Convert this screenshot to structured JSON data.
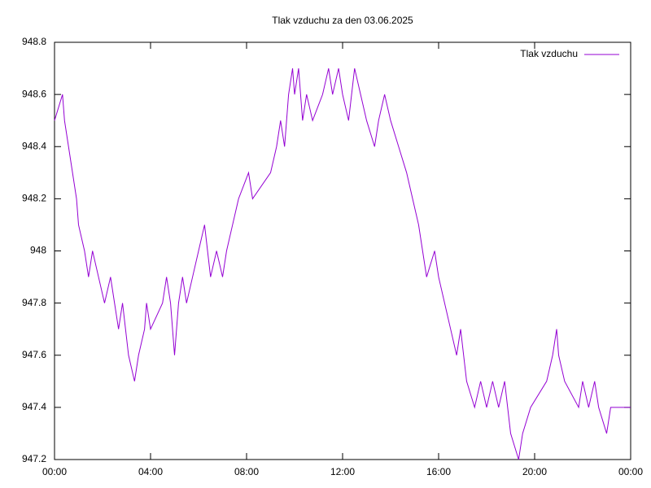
{
  "chart_data": {
    "type": "line",
    "title": "Tlak vzduchu za den 03.06.2025",
    "x": [
      0,
      20,
      25,
      35,
      55,
      60,
      75,
      85,
      95,
      110,
      125,
      140,
      150,
      160,
      170,
      185,
      200,
      210,
      225,
      230,
      240,
      270,
      280,
      290,
      300,
      310,
      320,
      330,
      345,
      360,
      375,
      390,
      405,
      420,
      430,
      445,
      460,
      485,
      495,
      540,
      555,
      565,
      575,
      585,
      595,
      600,
      610,
      620,
      630,
      645,
      670,
      685,
      695,
      710,
      720,
      735,
      750,
      765,
      780,
      800,
      810,
      825,
      840,
      860,
      880,
      895,
      910,
      920,
      930,
      950,
      960,
      990,
      1005,
      1015,
      1030,
      1050,
      1065,
      1080,
      1095,
      1110,
      1125,
      1140,
      1160,
      1170,
      1190,
      1230,
      1245,
      1255,
      1260,
      1275,
      1310,
      1320,
      1335,
      1350,
      1360,
      1380,
      1390,
      1440
    ],
    "series": [
      {
        "name": "Tlak vzduchu",
        "color": "#9400d3",
        "values": [
          948.5,
          948.6,
          948.5,
          948.4,
          948.2,
          948.1,
          948.0,
          947.9,
          948.0,
          947.9,
          947.8,
          947.9,
          947.8,
          947.7,
          947.8,
          947.6,
          947.5,
          947.6,
          947.7,
          947.8,
          947.7,
          947.8,
          947.9,
          947.8,
          947.6,
          947.8,
          947.9,
          947.8,
          947.9,
          948.0,
          948.1,
          947.9,
          948.0,
          947.9,
          948.0,
          948.1,
          948.2,
          948.3,
          948.2,
          948.3,
          948.4,
          948.5,
          948.4,
          948.6,
          948.7,
          948.6,
          948.7,
          948.5,
          948.6,
          948.5,
          948.6,
          948.7,
          948.6,
          948.7,
          948.6,
          948.5,
          948.7,
          948.6,
          948.5,
          948.4,
          948.5,
          948.6,
          948.5,
          948.4,
          948.3,
          948.2,
          948.1,
          948.0,
          947.9,
          948.0,
          947.9,
          947.7,
          947.6,
          947.7,
          947.5,
          947.4,
          947.5,
          947.4,
          947.5,
          947.4,
          947.5,
          947.3,
          947.2,
          947.3,
          947.4,
          947.5,
          947.6,
          947.7,
          947.6,
          947.5,
          947.4,
          947.5,
          947.4,
          947.5,
          947.4,
          947.3,
          947.4,
          947.4
        ]
      }
    ],
    "xlim": [
      0,
      1440
    ],
    "xticks": [
      {
        "value": 0,
        "label": "00:00"
      },
      {
        "value": 240,
        "label": "04:00"
      },
      {
        "value": 480,
        "label": "08:00"
      },
      {
        "value": 720,
        "label": "12:00"
      },
      {
        "value": 960,
        "label": "16:00"
      },
      {
        "value": 1200,
        "label": "20:00"
      },
      {
        "value": 1440,
        "label": "00:00"
      }
    ],
    "ylim": [
      947.2,
      948.8
    ],
    "yticks": [
      947.2,
      947.4,
      947.6,
      947.8,
      948,
      948.2,
      948.4,
      948.6,
      948.8
    ],
    "legend": "top-right"
  }
}
